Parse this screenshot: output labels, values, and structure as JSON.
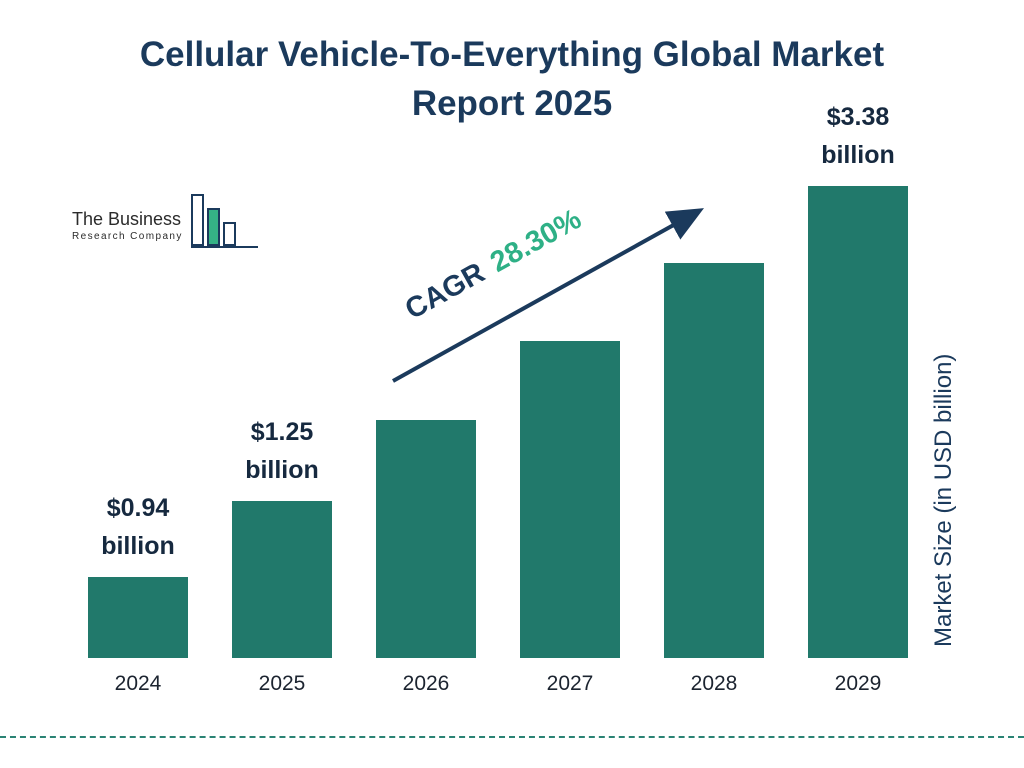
{
  "title": {
    "line1": "Cellular Vehicle-To-Everything Global Market",
    "line2": "Report 2025"
  },
  "logo": {
    "line1": "The Business",
    "line2": "Research Company"
  },
  "cagr": {
    "prefix": "CAGR",
    "value": "28.30%"
  },
  "y_axis_label": "Market Size (in USD billion)",
  "colors": {
    "bar": "#21796B",
    "navy": "#1B3A5C",
    "green": "#2EB086",
    "text": "#1E2633"
  },
  "chart_data": {
    "type": "bar",
    "title": "Cellular Vehicle-To-Everything Global Market Report 2025",
    "categories": [
      "2024",
      "2025",
      "2026",
      "2027",
      "2028",
      "2029"
    ],
    "values": [
      0.94,
      1.25,
      1.6,
      2.06,
      2.64,
      3.38
    ],
    "value_unit": "USD billion",
    "labeled_values": {
      "2024": "$0.94 billion",
      "2025": "$1.25 billion",
      "2029": "$3.38 billion"
    },
    "value_labels": [
      {
        "line1": "$0.94",
        "line2": "billion"
      },
      {
        "line1": "$1.25",
        "line2": "billion"
      },
      null,
      null,
      null,
      {
        "line1": "$3.38",
        "line2": "billion"
      }
    ],
    "display_heights_pct": [
      17,
      33,
      50,
      66.5,
      83,
      100
    ],
    "cagr": "28.30%",
    "xlabel": "",
    "ylabel": "Market Size (in USD billion)",
    "ylim": [
      0,
      3.38
    ],
    "grid": false,
    "legend": "none"
  }
}
